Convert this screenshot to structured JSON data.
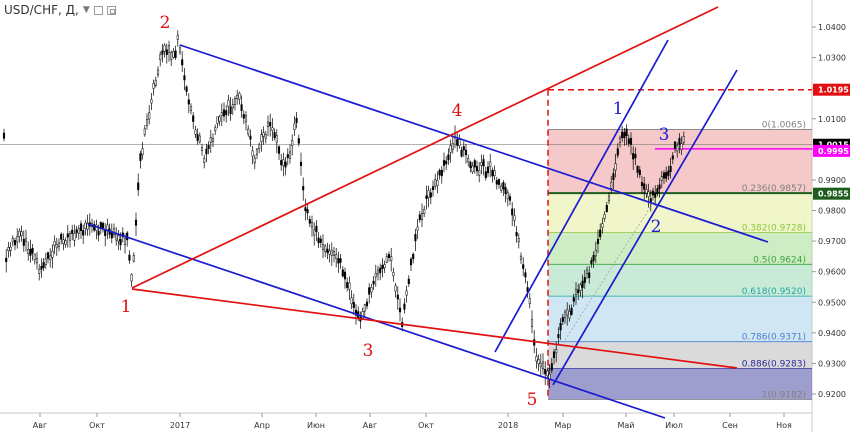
{
  "header": {
    "title": "USD/CHF, Д,",
    "dropdown_icon": "chevron-down-icon",
    "icons": [
      "settings-square-icon",
      "maximize-square-icon"
    ]
  },
  "chart_data": {
    "type": "candlestick",
    "symbol": "USD/CHF",
    "timeframe": "Д",
    "x_tick_labels": [
      "Авг",
      "Окт",
      "2017",
      "Апр",
      "Июн",
      "Авг",
      "Окт",
      "2018",
      "Мар",
      "Май",
      "Июл",
      "Сен",
      "Ноя"
    ],
    "y_axis": {
      "ticks": [
        "0.9200",
        "0.9300",
        "0.9400",
        "0.9500",
        "0.9600",
        "0.9700",
        "0.9800",
        "0.9900",
        "1.0000",
        "1.0100",
        "1.0200",
        "1.0300",
        "1.0400"
      ],
      "range": [
        0.916,
        1.0445
      ]
    },
    "price_labels": [
      {
        "value": 1.0195,
        "text": "1.0195",
        "color": "#e01010"
      },
      {
        "value": 1.0015,
        "text": "1.0015",
        "color": "#000000"
      },
      {
        "value": 0.9995,
        "text": "0.9995",
        "color": "#ff00ff"
      },
      {
        "value": 0.9855,
        "text": "0.9855",
        "color": "#1e5d1e"
      }
    ],
    "fibonacci": {
      "high": 1.0065,
      "low": 0.9182,
      "levels": [
        {
          "ratio": 0,
          "price": 1.0065,
          "text": "0(1.0065)",
          "color": "#808080"
        },
        {
          "ratio": 0.236,
          "price": 0.9857,
          "text": "0.236(0.9857)",
          "color": "#808080"
        },
        {
          "ratio": 0.382,
          "price": 0.9728,
          "text": "0.382(0.9728)",
          "color": "#8fc43f"
        },
        {
          "ratio": 0.5,
          "price": 0.9624,
          "text": "0.5(0.9624)",
          "color": "#3aa63a"
        },
        {
          "ratio": 0.618,
          "price": 0.952,
          "text": "0.618(0.9520)",
          "color": "#1fa6a6"
        },
        {
          "ratio": 0.786,
          "price": 0.9371,
          "text": "0.786(0.9371)",
          "color": "#4a7fd6"
        },
        {
          "ratio": 0.886,
          "price": 0.9283,
          "text": "0.886(0.9283)",
          "color": "#2a2a9a"
        },
        {
          "ratio": 1,
          "price": 0.9182,
          "text": "1(0.9182)",
          "color": "#808080"
        }
      ]
    },
    "wave_labels": [
      {
        "text": "1",
        "color": "#e01010"
      },
      {
        "text": "2",
        "color": "#e01010"
      },
      {
        "text": "3",
        "color": "#e01010"
      },
      {
        "text": "4",
        "color": "#e01010"
      },
      {
        "text": "5",
        "color": "#e01010"
      },
      {
        "text": "1",
        "color": "#1a1ad0"
      },
      {
        "text": "2",
        "color": "#1a1ad0"
      },
      {
        "text": "3",
        "color": "#1a1ad0"
      }
    ],
    "colors": {
      "blue_lines": "#1a1ad0",
      "red_lines": "#e01010",
      "magenta_level": "#ff00ff",
      "green_level": "#1e5d1e",
      "candles": "#000000"
    }
  }
}
